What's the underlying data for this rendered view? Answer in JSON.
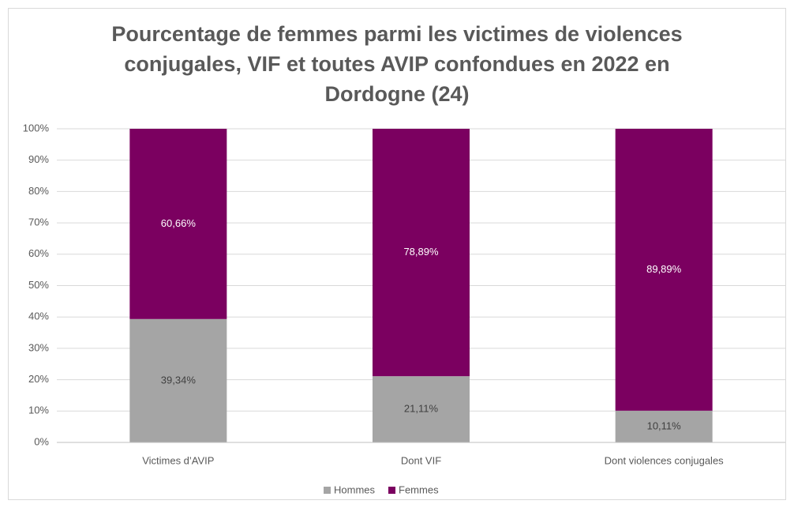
{
  "chart_data": {
    "type": "stacked_bar",
    "title": "Pourcentage de femmes parmi les victimes de violences conjugales, VIF et toutes AVIP confondues en 2022 en Dordogne (24)",
    "categories": [
      "Victimes d’AVIP",
      "Dont VIF",
      "Dont violences conjugales"
    ],
    "series": [
      {
        "name": "Hommes",
        "color": "#a5a5a5",
        "values": [
          39.34,
          21.11,
          10.11
        ],
        "value_labels": [
          "39,34%",
          "21,11%",
          "10,11%"
        ]
      },
      {
        "name": "Femmes",
        "color": "#7b0060",
        "values": [
          60.66,
          78.89,
          89.89
        ],
        "value_labels": [
          "60,66%",
          "78,89%",
          "89,89%"
        ]
      }
    ],
    "ylim": [
      0,
      100
    ],
    "yticks": [
      {
        "value": 0,
        "label": "0%"
      },
      {
        "value": 10,
        "label": "10%"
      },
      {
        "value": 20,
        "label": "20%"
      },
      {
        "value": 30,
        "label": "30%"
      },
      {
        "value": 40,
        "label": "40%"
      },
      {
        "value": 50,
        "label": "50%"
      },
      {
        "value": 60,
        "label": "60%"
      },
      {
        "value": 70,
        "label": "70%"
      },
      {
        "value": 80,
        "label": "80%"
      },
      {
        "value": 90,
        "label": "90%"
      },
      {
        "value": 100,
        "label": "100%"
      }
    ],
    "grid": true,
    "legend": "bottom"
  }
}
